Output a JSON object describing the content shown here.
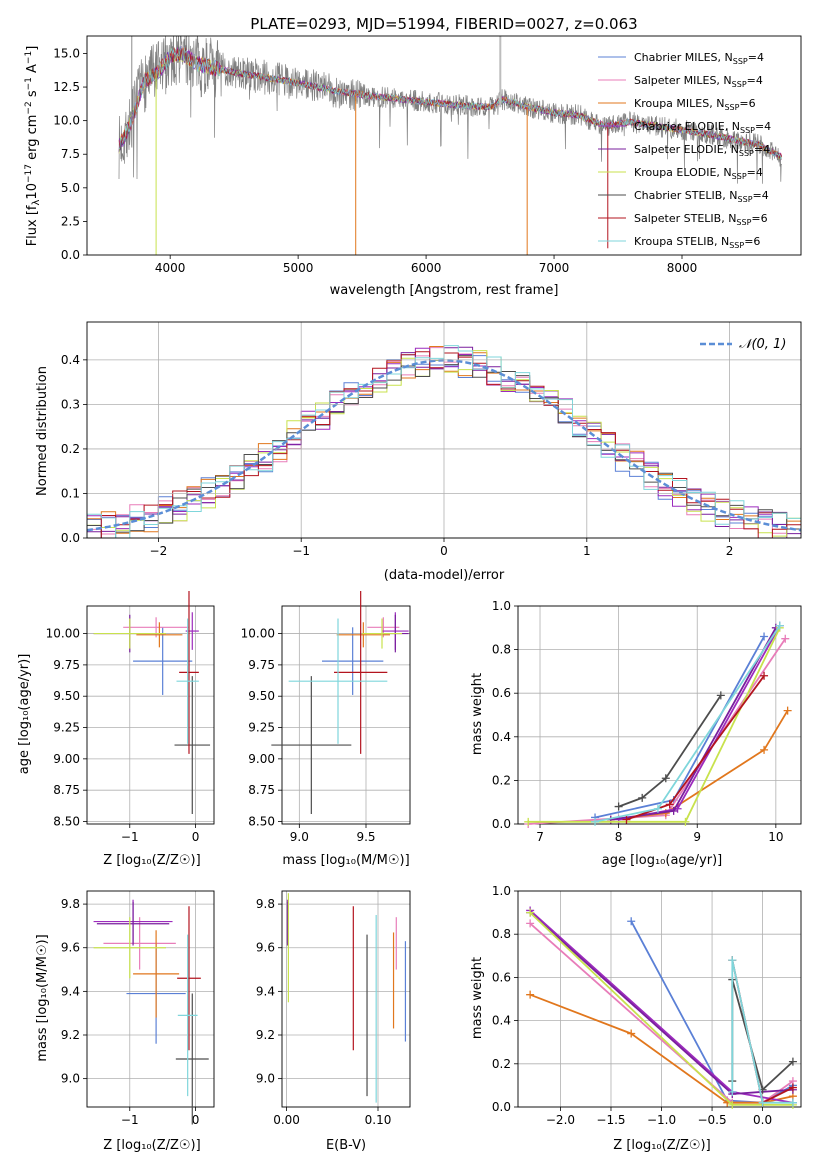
{
  "colors": {
    "Chabrier MILES": "#5b80d6",
    "Salpeter MILES": "#e87db9",
    "Kroupa MILES": "#e1771d",
    "Chabrier ELODIE": "#9c2bbd",
    "Salpeter ELODIE": "#7a1f9e",
    "Kroupa ELODIE": "#c8e24d",
    "Chabrier STELIB": "#4d4d4d",
    "Salpeter STELIB": "#b3141f",
    "Kroupa STELIB": "#7fd6db",
    "spectrum": "#808080",
    "normal": "#5b8ed6"
  },
  "chart_data": [
    {
      "id": "spectrum",
      "type": "line",
      "title": "PLATE=0293, MJD=51994, FIBERID=0027, z=0.063",
      "xlabel": "wavelength [Angstrom, rest frame]",
      "ylabel_parts": [
        "Flux [f",
        "λ",
        "10",
        "−17",
        " erg cm",
        "−2",
        " s",
        "−1",
        " A",
        "−1",
        "]"
      ],
      "xlim": [
        3350,
        8930
      ],
      "ylim": [
        0,
        16.3
      ],
      "xticks": [
        4000,
        5000,
        6000,
        7000,
        8000
      ],
      "xtick_labels": [
        "4000",
        "5000",
        "6000",
        "7000",
        "8000"
      ],
      "yticks": [
        0,
        2.5,
        5,
        7.5,
        10,
        12.5,
        15
      ],
      "ytick_labels": [
        "0.0",
        "2.5",
        "5.0",
        "7.5",
        "10.0",
        "12.5",
        "15.0"
      ],
      "grid": false,
      "legend_position": "top-right",
      "continuum": {
        "x": [
          3600,
          3700,
          3800,
          3900,
          4000,
          4100,
          4200,
          4300,
          4500,
          4700,
          5000,
          5300,
          5600,
          5900,
          6200,
          6500,
          6600,
          6800,
          7000,
          7200,
          7400,
          7600,
          7800,
          8000,
          8200,
          8400,
          8600,
          8800
        ],
        "y": [
          8.0,
          10.0,
          13.0,
          13.5,
          14.8,
          15.0,
          14.3,
          14.0,
          13.6,
          13.3,
          12.8,
          12.2,
          11.8,
          11.5,
          11.2,
          11.0,
          11.6,
          11.0,
          10.6,
          10.4,
          9.6,
          9.9,
          9.6,
          9.3,
          9.0,
          8.6,
          8.2,
          7.2
        ]
      },
      "legend": [
        {
          "model": "Chabrier MILES",
          "nssp": "4"
        },
        {
          "model": "Salpeter MILES",
          "nssp": "4"
        },
        {
          "model": "Kroupa MILES",
          "nssp": "6"
        },
        {
          "model": "Chabrier ELODIE",
          "nssp": "4"
        },
        {
          "model": "Salpeter ELODIE",
          "nssp": "4"
        },
        {
          "model": "Kroupa ELODIE",
          "nssp": "4"
        },
        {
          "model": "Chabrier STELIB",
          "nssp": "4"
        },
        {
          "model": "Salpeter STELIB",
          "nssp": "6"
        },
        {
          "model": "Kroupa STELIB",
          "nssp": "6"
        }
      ],
      "legend_prefix": "N",
      "legend_subscript": "SSP"
    },
    {
      "id": "residuals",
      "type": "bar",
      "xlabel": "(data-model)/error",
      "ylabel": "Normed distribution",
      "xlim": [
        -2.5,
        2.5
      ],
      "ylim": [
        0,
        0.485
      ],
      "xticks": [
        -2,
        -1,
        0,
        1,
        2
      ],
      "xtick_labels": [
        "−2",
        "−1",
        "0",
        "1",
        "2"
      ],
      "yticks": [
        0,
        0.1,
        0.2,
        0.3,
        0.4
      ],
      "ytick_labels": [
        "0.0",
        "0.1",
        "0.2",
        "0.3",
        "0.4"
      ],
      "grid": true,
      "legend": "𝒩(0, 1)",
      "legend_position": "top-right",
      "bins": {
        "start": -2.5,
        "width": 0.1,
        "count": 50
      }
    },
    {
      "id": "age-vs-Z",
      "type": "scatter",
      "xlabel": "Z [log₁₀(Z/Z☉)]",
      "ylabel": "age  [log₁₀(age/yr)]",
      "xlim": [
        -1.65,
        0.28
      ],
      "ylim": [
        8.48,
        10.22
      ],
      "xticks": [
        -1,
        0
      ],
      "xtick_labels": [
        "−1",
        "0"
      ],
      "yticks": [
        8.5,
        8.75,
        9.0,
        9.25,
        9.5,
        9.75,
        10.0
      ],
      "ytick_labels": [
        "8.50",
        "8.75",
        "9.00",
        "9.25",
        "9.50",
        "9.75",
        "10.00"
      ],
      "grid": true,
      "points": [
        {
          "model": "Chabrier MILES",
          "x": -0.5,
          "xerr": 0.45,
          "y": 9.78,
          "yerr": 0.27
        },
        {
          "model": "Salpeter MILES",
          "x": -0.6,
          "xerr": 0.5,
          "y": 10.05,
          "yerr": 0.08
        },
        {
          "model": "Kroupa MILES",
          "x": -0.55,
          "xerr": 0.35,
          "y": 9.99,
          "yerr": 0.1
        },
        {
          "model": "Chabrier ELODIE",
          "x": -0.05,
          "xerr": 0.1,
          "y": 10.02,
          "yerr": 0.15
        },
        {
          "model": "Salpeter ELODIE",
          "x": -1.0,
          "xerr": 0.55,
          "y": 10.0,
          "yerr": 0.15
        },
        {
          "model": "Kroupa ELODIE",
          "x": -1.0,
          "xerr": 0.55,
          "y": 10.0,
          "yerr": 0.12
        },
        {
          "model": "Chabrier STELIB",
          "x": -0.05,
          "xerr": 0.27,
          "y": 9.11,
          "yerr": 0.55
        },
        {
          "model": "Salpeter STELIB",
          "x": -0.1,
          "xerr": 0.15,
          "y": 9.69,
          "yerr": 0.65
        },
        {
          "model": "Kroupa STELIB",
          "x": -0.12,
          "xerr": 0.17,
          "y": 9.62,
          "yerr": 0.5
        }
      ]
    },
    {
      "id": "age-vs-mass",
      "type": "scatter",
      "xlabel": "mass [log₁₀(M/M☉)]",
      "xlim": [
        8.87,
        9.83
      ],
      "ylim": [
        8.48,
        10.22
      ],
      "xticks": [
        9.0,
        9.5
      ],
      "xtick_labels": [
        "9.0",
        "9.5"
      ],
      "yticks": [
        8.5,
        8.75,
        9.0,
        9.25,
        9.5,
        9.75,
        10.0
      ],
      "ytick_labels": [
        "8.50",
        "8.75",
        "9.00",
        "9.25",
        "9.50",
        "9.75",
        "10.00"
      ],
      "grid": true,
      "points": [
        {
          "model": "Chabrier MILES",
          "x": 9.4,
          "xerr": 0.23,
          "y": 9.78,
          "yerr": 0.27
        },
        {
          "model": "Salpeter MILES",
          "x": 9.63,
          "xerr": 0.12,
          "y": 10.05,
          "yerr": 0.08
        },
        {
          "model": "Kroupa MILES",
          "x": 9.48,
          "xerr": 0.2,
          "y": 9.99,
          "yerr": 0.1
        },
        {
          "model": "Chabrier ELODIE",
          "x": 9.72,
          "xerr": 0.1,
          "y": 10.02,
          "yerr": 0.15
        },
        {
          "model": "Salpeter ELODIE",
          "x": 9.72,
          "xerr": 0.1,
          "y": 10.0,
          "yerr": 0.15
        },
        {
          "model": "Kroupa ELODIE",
          "x": 9.62,
          "xerr": 0.15,
          "y": 10.0,
          "yerr": 0.12
        },
        {
          "model": "Chabrier STELIB",
          "x": 9.09,
          "xerr": 0.3,
          "y": 9.11,
          "yerr": 0.55
        },
        {
          "model": "Salpeter STELIB",
          "x": 9.46,
          "xerr": 0.2,
          "y": 9.69,
          "yerr": 0.65
        },
        {
          "model": "Kroupa STELIB",
          "x": 9.29,
          "xerr": 0.37,
          "y": 9.62,
          "yerr": 0.5
        }
      ]
    },
    {
      "id": "weight-vs-age",
      "type": "line",
      "xlabel": "age  [log₁₀(age/yr)]",
      "ylabel": "mass weight",
      "xlim": [
        6.72,
        10.32
      ],
      "ylim": [
        0,
        1.0
      ],
      "xticks": [
        7,
        8,
        9,
        10
      ],
      "xtick_labels": [
        "7",
        "8",
        "9",
        "10"
      ],
      "yticks": [
        0,
        0.2,
        0.4,
        0.6,
        0.8,
        1.0
      ],
      "ytick_labels": [
        "0.0",
        "0.2",
        "0.4",
        "0.6",
        "0.8",
        "1.0"
      ],
      "grid": true,
      "series": [
        {
          "model": "Chabrier MILES",
          "x": [
            7.7,
            8.7,
            9.85
          ],
          "y": [
            0.03,
            0.11,
            0.86
          ]
        },
        {
          "model": "Salpeter MILES",
          "x": [
            6.85,
            8.6,
            10.12
          ],
          "y": [
            0.0,
            0.04,
            0.85
          ]
        },
        {
          "model": "Kroupa MILES",
          "x": [
            7.9,
            8.6,
            9.85,
            10.15
          ],
          "y": [
            0.02,
            0.05,
            0.34,
            0.52
          ]
        },
        {
          "model": "Chabrier ELODIE",
          "x": [
            8.0,
            8.75,
            10.05
          ],
          "y": [
            0.02,
            0.07,
            0.91
          ]
        },
        {
          "model": "Salpeter ELODIE",
          "x": [
            7.9,
            8.7,
            10.0
          ],
          "y": [
            0.02,
            0.06,
            0.9
          ]
        },
        {
          "model": "Kroupa ELODIE",
          "x": [
            6.85,
            8.85,
            10.05
          ],
          "y": [
            0.01,
            0.01,
            0.9
          ]
        },
        {
          "model": "Chabrier STELIB",
          "x": [
            8.0,
            8.3,
            8.6,
            9.3
          ],
          "y": [
            0.08,
            0.12,
            0.21,
            0.59
          ]
        },
        {
          "model": "Salpeter STELIB",
          "x": [
            8.1,
            8.65,
            9.85
          ],
          "y": [
            0.02,
            0.09,
            0.68
          ]
        },
        {
          "model": "Kroupa STELIB",
          "x": [
            7.7,
            8.5,
            10.05
          ],
          "y": [
            0.01,
            0.07,
            0.91
          ]
        }
      ]
    },
    {
      "id": "mass-vs-Z",
      "type": "scatter",
      "xlabel": "Z [log₁₀(Z/Z☉)]",
      "ylabel": "mass [log₁₀(M/M☉)]",
      "xlim": [
        -1.65,
        0.28
      ],
      "ylim": [
        8.87,
        9.86
      ],
      "xticks": [
        -1,
        0
      ],
      "xtick_labels": [
        "−1",
        "0"
      ],
      "yticks": [
        9.0,
        9.2,
        9.4,
        9.6,
        9.8
      ],
      "ytick_labels": [
        "9.0",
        "9.2",
        "9.4",
        "9.6",
        "9.8"
      ],
      "grid": true,
      "points": [
        {
          "model": "Chabrier MILES",
          "x": -0.6,
          "xerr": 0.45,
          "y": 9.39,
          "yerr": 0.23
        },
        {
          "model": "Salpeter MILES",
          "x": -0.85,
          "xerr": 0.55,
          "y": 9.62,
          "yerr": 0.12
        },
        {
          "model": "Kroupa MILES",
          "x": -0.6,
          "xerr": 0.35,
          "y": 9.48,
          "yerr": 0.2
        },
        {
          "model": "Chabrier ELODIE",
          "x": -0.95,
          "xerr": 0.6,
          "y": 9.72,
          "yerr": 0.1
        },
        {
          "model": "Salpeter ELODIE",
          "x": -0.95,
          "xerr": 0.55,
          "y": 9.71,
          "yerr": 0.1
        },
        {
          "model": "Kroupa ELODIE",
          "x": -1.0,
          "xerr": 0.55,
          "y": 9.6,
          "yerr": 0.14
        },
        {
          "model": "Chabrier STELIB",
          "x": -0.05,
          "xerr": 0.25,
          "y": 9.09,
          "yerr": 0.3
        },
        {
          "model": "Salpeter STELIB",
          "x": -0.1,
          "xerr": 0.18,
          "y": 9.46,
          "yerr": 0.33
        },
        {
          "model": "Kroupa STELIB",
          "x": -0.12,
          "xerr": 0.15,
          "y": 9.29,
          "yerr": 0.37
        }
      ]
    },
    {
      "id": "mass-vs-EBV",
      "type": "scatter",
      "xlabel": "E(B-V)",
      "xlim": [
        -0.005,
        0.135
      ],
      "ylim": [
        8.87,
        9.86
      ],
      "xticks": [
        0.0,
        0.1
      ],
      "xtick_labels": [
        "0.00",
        "0.10"
      ],
      "yticks": [
        9.0,
        9.2,
        9.4,
        9.6,
        9.8
      ],
      "ytick_labels": [
        "9.0",
        "9.2",
        "9.4",
        "9.6",
        "9.8"
      ],
      "grid": true,
      "points": [
        {
          "model": "Chabrier MILES",
          "x": 0.13,
          "y": 9.4,
          "yerr": 0.23
        },
        {
          "model": "Salpeter MILES",
          "x": 0.12,
          "y": 9.62,
          "yerr": 0.12
        },
        {
          "model": "Kroupa MILES",
          "x": 0.117,
          "y": 9.45,
          "yerr": 0.22
        },
        {
          "model": "Chabrier ELODIE",
          "x": 0.001,
          "y": 9.72,
          "yerr": 0.1
        },
        {
          "model": "Salpeter ELODIE",
          "x": 0.001,
          "y": 9.71,
          "yerr": 0.1
        },
        {
          "model": "Kroupa ELODIE",
          "x": 0.002,
          "y": 9.6,
          "yerr": 0.25
        },
        {
          "model": "Chabrier STELIB",
          "x": 0.088,
          "y": 9.29,
          "yerr": 0.37
        },
        {
          "model": "Salpeter STELIB",
          "x": 0.073,
          "y": 9.46,
          "yerr": 0.33
        },
        {
          "model": "Kroupa STELIB",
          "x": 0.098,
          "y": 9.32,
          "yerr": 0.43
        }
      ]
    },
    {
      "id": "weight-vs-Z",
      "type": "line",
      "xlabel": "Z [log₁₀(Z/Z☉)]",
      "ylabel": "mass weight",
      "xlim": [
        -2.42,
        0.38
      ],
      "ylim": [
        0,
        1.0
      ],
      "xticks": [
        -2.0,
        -1.5,
        -1.0,
        -0.5,
        0.0
      ],
      "xtick_labels": [
        "−2.0",
        "−1.5",
        "−1.0",
        "−0.5",
        "0.0"
      ],
      "yticks": [
        0,
        0.2,
        0.4,
        0.6,
        0.8,
        1.0
      ],
      "ytick_labels": [
        "0.0",
        "0.2",
        "0.4",
        "0.6",
        "0.8",
        "1.0"
      ],
      "grid": true,
      "series": [
        {
          "model": "Chabrier MILES",
          "x": [
            -1.3,
            -0.35,
            0.0,
            0.3
          ],
          "y": [
            0.86,
            0.03,
            0.02,
            0.1
          ]
        },
        {
          "model": "Salpeter MILES",
          "x": [
            -2.3,
            -0.3,
            0.0,
            0.3
          ],
          "y": [
            0.85,
            0.02,
            0.02,
            0.12
          ]
        },
        {
          "model": "Kroupa MILES",
          "x": [
            -2.3,
            -1.3,
            -0.35,
            0.0,
            0.3
          ],
          "y": [
            0.52,
            0.34,
            0.02,
            0.02,
            0.05
          ]
        },
        {
          "model": "Chabrier ELODIE",
          "x": [
            -2.3,
            -0.3,
            0.3
          ],
          "y": [
            0.91,
            0.07,
            0.02
          ]
        },
        {
          "model": "Salpeter ELODIE",
          "x": [
            -2.3,
            -0.3,
            0.3
          ],
          "y": [
            0.9,
            0.06,
            0.08
          ]
        },
        {
          "model": "Kroupa ELODIE",
          "x": [
            -2.3,
            -0.3,
            0.3
          ],
          "y": [
            0.9,
            0.01,
            0.01
          ]
        },
        {
          "model": "Chabrier STELIB",
          "x": [
            -0.3,
            -0.3,
            0.0,
            0.3
          ],
          "y": [
            0.12,
            0.59,
            0.08,
            0.21
          ]
        },
        {
          "model": "Salpeter STELIB",
          "x": [
            -0.3,
            0.0,
            0.3
          ],
          "y": [
            0.68,
            0.02,
            0.09
          ]
        },
        {
          "model": "Kroupa STELIB",
          "x": [
            -0.3,
            -0.3,
            0.0,
            0.3
          ],
          "y": [
            0.07,
            0.68,
            0.02,
            0.02
          ]
        }
      ]
    }
  ]
}
